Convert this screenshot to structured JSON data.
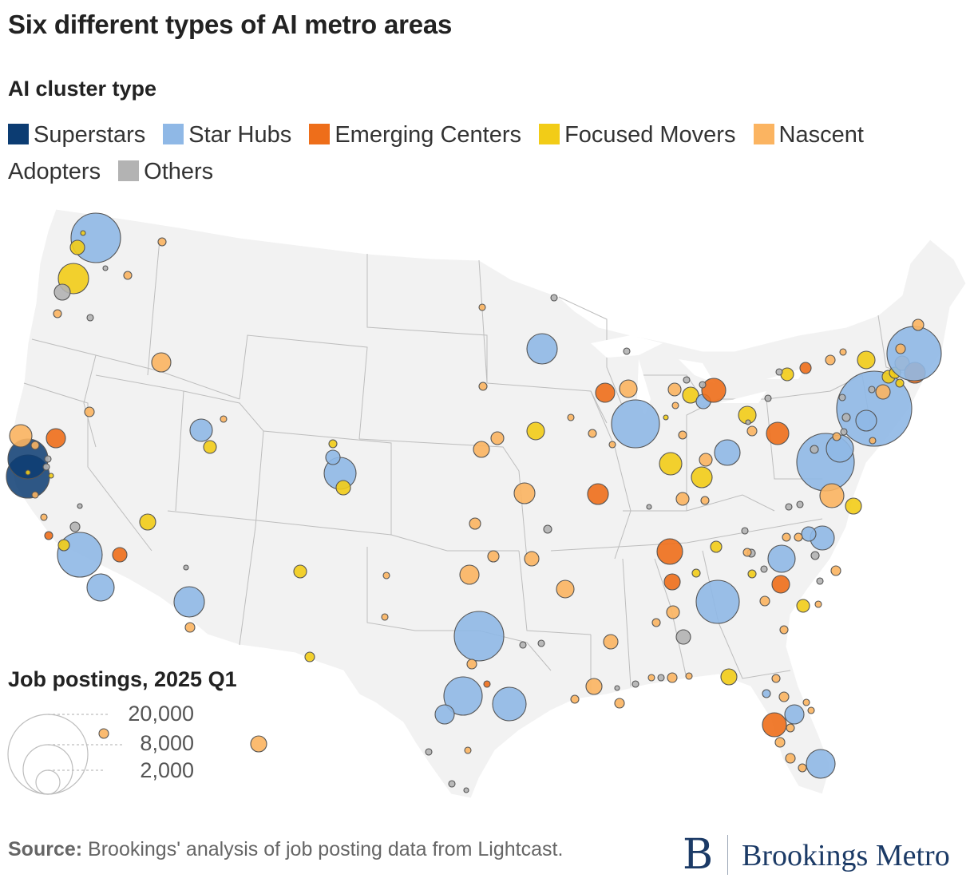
{
  "title": "Six different types of AI metro areas",
  "legend": {
    "title": "AI cluster type",
    "items": [
      {
        "label": "Superstars",
        "color": "#0c3c72"
      },
      {
        "label": "Star Hubs",
        "color": "#8fb8e6"
      },
      {
        "label": "Emerging Centers",
        "color": "#ee6e1a"
      },
      {
        "label": "Focused Movers",
        "color": "#f2cc17"
      },
      {
        "label": "Nascent Adopters",
        "color": "#fbb461"
      },
      {
        "label": "Others",
        "color": "#b3b3b3"
      }
    ]
  },
  "size_legend": {
    "title": "Job postings, 2025 Q1",
    "values": [
      "20,000",
      "8,000",
      "2,000"
    ]
  },
  "source": {
    "label": "Source:",
    "text": " Brookings' analysis of job posting data from Lightcast."
  },
  "brand": {
    "mark": "B",
    "name": "Brookings Metro"
  },
  "map": {
    "land_color": "#f2f2f2",
    "border_color": "#b9b9b9"
  }
}
